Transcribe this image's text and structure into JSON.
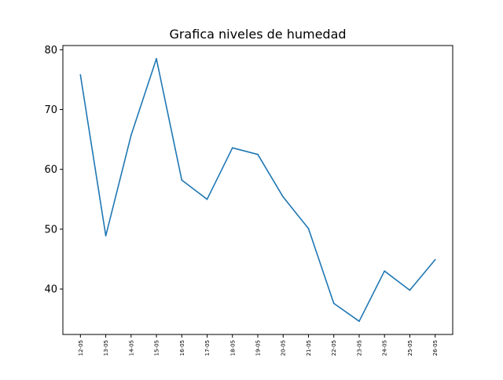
{
  "chart_data": {
    "type": "line",
    "title": "Grafica niveles de humedad",
    "xlabel": "",
    "ylabel": "",
    "categories": [
      "12-05",
      "13-05",
      "14-05",
      "15-05",
      "16-05",
      "17-05",
      "18-05",
      "19-05",
      "20-05",
      "21-05",
      "22-05",
      "23-05",
      "24-05",
      "25-05",
      "26-05"
    ],
    "series": [
      {
        "values": [
          75.8,
          48.9,
          65.7,
          78.5,
          58.2,
          55.0,
          63.6,
          62.5,
          55.4,
          50.1,
          37.6,
          34.6,
          43.0,
          39.8,
          44.9
        ],
        "color": "#1f77b4"
      }
    ],
    "yticks": [
      40,
      50,
      60,
      70,
      80
    ],
    "ylim": [
      32.4,
      80.7
    ],
    "grid": false,
    "legend": "none"
  }
}
